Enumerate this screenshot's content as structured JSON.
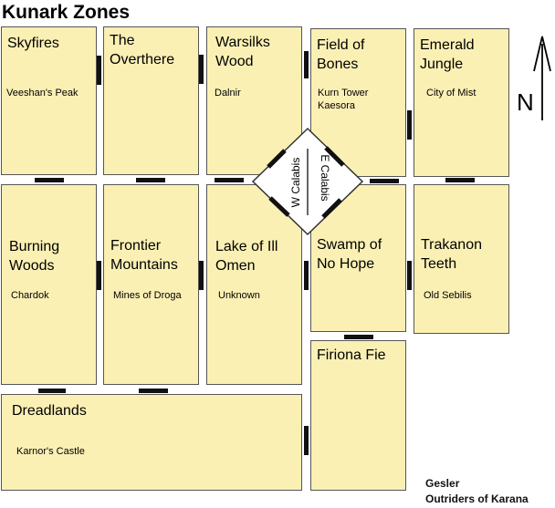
{
  "title": "Kunark Zones",
  "zones": [
    {
      "id": "skyfires",
      "name": "Skyfires",
      "sub": "Veeshan's Peak"
    },
    {
      "id": "overthere",
      "name": "The Overthere",
      "sub": ""
    },
    {
      "id": "warsliks",
      "name": "Warsilks Wood",
      "sub": "Dalnir"
    },
    {
      "id": "field",
      "name": "Field of Bones",
      "sub": "Kurn Tower",
      "sub2": "Kaesora"
    },
    {
      "id": "emerald",
      "name": "Emerald Jungle",
      "sub": "City of Mist"
    },
    {
      "id": "burning",
      "name": "Burning Woods",
      "sub": "Chardok"
    },
    {
      "id": "frontier",
      "name": "Frontier Mountains",
      "sub": "Mines of Droga"
    },
    {
      "id": "lake",
      "name": "Lake of Ill Omen",
      "sub": "Unknown"
    },
    {
      "id": "swamp",
      "name": "Swamp of No Hope",
      "sub": ""
    },
    {
      "id": "trakanon",
      "name": "Trakanon Teeth",
      "sub": "Old Sebilis"
    },
    {
      "id": "firiona",
      "name": "Firiona Fie",
      "sub": ""
    },
    {
      "id": "dreadlands",
      "name": "Dreadlands",
      "sub": "Karnor's Castle"
    }
  ],
  "hub": {
    "west": "W Calabis",
    "east": "E Calabis"
  },
  "compass": {
    "label": "N",
    "icon": "north-arrow-icon"
  },
  "credit": {
    "line1": "Gesler",
    "line2": "Outriders of Karana"
  },
  "colors": {
    "zone_fill": "#fbf0b4",
    "zone_border": "#555555",
    "connector": "#111111"
  }
}
